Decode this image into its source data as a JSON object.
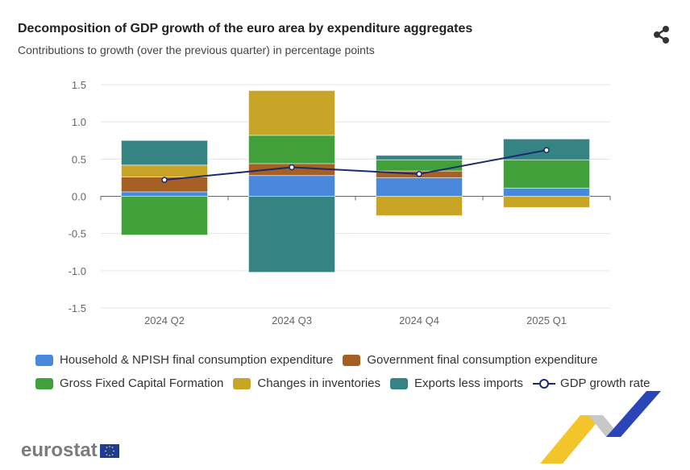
{
  "header": {
    "title": "Decomposition of GDP growth of the euro area by expenditure aggregates",
    "subtitle": "Contributions to growth (over the previous quarter) in percentage points",
    "share_icon": "share-icon"
  },
  "logo": {
    "text": "eurostat",
    "flag": "eu-flag"
  },
  "chart_data": {
    "type": "bar",
    "stacked": true,
    "categories": [
      "2024 Q2",
      "2024 Q3",
      "2024 Q4",
      "2025 Q1"
    ],
    "ylim": [
      -1.5,
      1.5
    ],
    "yticks": [
      "1.5",
      "1.0",
      "0.5",
      "0.0",
      "-0.5",
      "-1.0",
      "-1.5"
    ],
    "grid": true,
    "legend_position": "bottom",
    "series": [
      {
        "name": "Household & NPISH final consumption expenditure",
        "color": "#4a88dc",
        "values": [
          0.06,
          0.28,
          0.25,
          0.11
        ]
      },
      {
        "name": "Government final consumption expenditure",
        "color": "#a66024",
        "values": [
          0.2,
          0.16,
          0.09,
          0.0
        ]
      },
      {
        "name": "Gross Fixed Capital Formation",
        "color": "#42a03a",
        "values": [
          -0.52,
          0.38,
          0.15,
          0.38
        ]
      },
      {
        "name": "Changes in inventories",
        "color": "#c8a427",
        "values": [
          0.16,
          0.6,
          -0.26,
          -0.15
        ]
      },
      {
        "name": "Exports less imports",
        "color": "#358383",
        "values": [
          0.33,
          -1.02,
          0.06,
          0.28
        ]
      }
    ],
    "line": {
      "name": "GDP growth rate",
      "type": "line",
      "color": "#1a2a6e",
      "values": [
        0.22,
        0.39,
        0.3,
        0.62
      ]
    }
  }
}
